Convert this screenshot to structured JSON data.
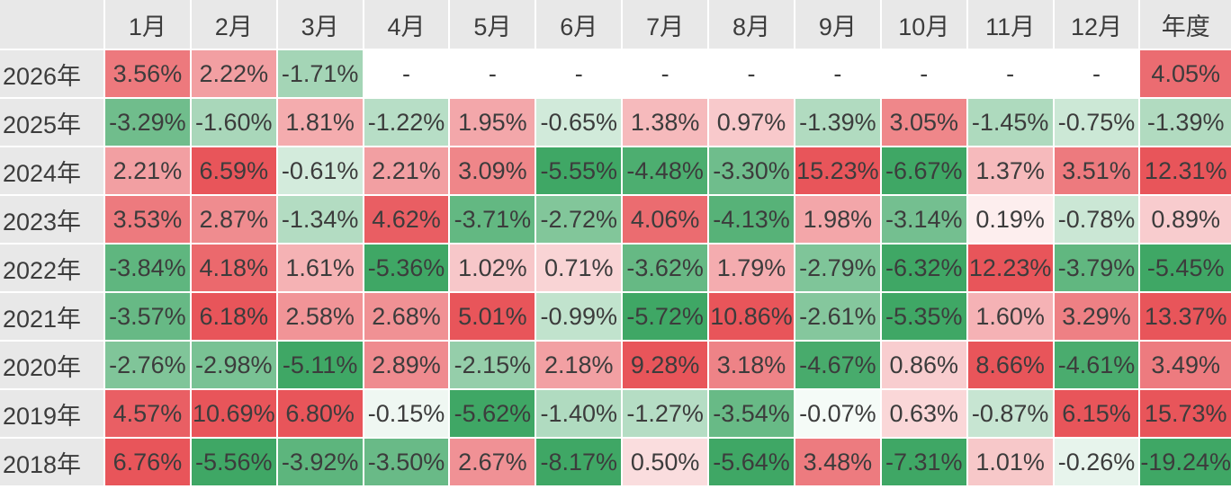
{
  "colors": {
    "positive_max": "#e8555a",
    "negative_max": "#3fa765",
    "zero_or_missing_bg": "#ffffff",
    "header_bg": "#e8e8e8",
    "text": "#3c3c3c",
    "grid_gap": "#ffffff",
    "scale_cap": 5
  },
  "table": {
    "corner": "",
    "columns": [
      "1月",
      "2月",
      "3月",
      "4月",
      "5月",
      "6月",
      "7月",
      "8月",
      "9月",
      "10月",
      "11月",
      "12月",
      "年度"
    ],
    "rows": [
      {
        "year": "2026年",
        "cells": [
          "3.56%",
          "2.22%",
          "-1.71%",
          "-",
          "-",
          "-",
          "-",
          "-",
          "-",
          "-",
          "-",
          "-",
          "4.05%"
        ]
      },
      {
        "year": "2025年",
        "cells": [
          "-3.29%",
          "-1.60%",
          "1.81%",
          "-1.22%",
          "1.95%",
          "-0.65%",
          "1.38%",
          "0.97%",
          "-1.39%",
          "3.05%",
          "-1.45%",
          "-0.75%",
          "-1.39%"
        ]
      },
      {
        "year": "2024年",
        "cells": [
          "2.21%",
          "6.59%",
          "-0.61%",
          "2.21%",
          "3.09%",
          "-5.55%",
          "-4.48%",
          "-3.30%",
          "15.23%",
          "-6.67%",
          "1.37%",
          "3.51%",
          "12.31%"
        ]
      },
      {
        "year": "2023年",
        "cells": [
          "3.53%",
          "2.87%",
          "-1.34%",
          "4.62%",
          "-3.71%",
          "-2.72%",
          "4.06%",
          "-4.13%",
          "1.98%",
          "-3.14%",
          "0.19%",
          "-0.78%",
          "0.89%"
        ]
      },
      {
        "year": "2022年",
        "cells": [
          "-3.84%",
          "4.18%",
          "1.61%",
          "-5.36%",
          "1.02%",
          "0.71%",
          "-3.62%",
          "1.79%",
          "-2.79%",
          "-6.32%",
          "12.23%",
          "-3.79%",
          "-5.45%"
        ]
      },
      {
        "year": "2021年",
        "cells": [
          "-3.57%",
          "6.18%",
          "2.58%",
          "2.68%",
          "5.01%",
          "-0.99%",
          "-5.72%",
          "10.86%",
          "-2.61%",
          "-5.35%",
          "1.60%",
          "3.29%",
          "13.37%"
        ]
      },
      {
        "year": "2020年",
        "cells": [
          "-2.76%",
          "-2.98%",
          "-5.11%",
          "2.89%",
          "-2.15%",
          "2.18%",
          "9.28%",
          "3.18%",
          "-4.67%",
          "0.86%",
          "8.66%",
          "-4.61%",
          "3.49%"
        ]
      },
      {
        "year": "2019年",
        "cells": [
          "4.57%",
          "10.69%",
          "6.80%",
          "-0.15%",
          "-5.62%",
          "-1.40%",
          "-1.27%",
          "-3.54%",
          "-0.07%",
          "0.63%",
          "-0.87%",
          "6.15%",
          "15.73%"
        ]
      },
      {
        "year": "2018年",
        "cells": [
          "6.76%",
          "-5.56%",
          "-3.92%",
          "-3.50%",
          "2.67%",
          "-8.17%",
          "0.50%",
          "-5.64%",
          "3.48%",
          "-7.31%",
          "1.01%",
          "-0.26%",
          "-19.24%"
        ]
      }
    ]
  },
  "chart_data": {
    "type": "heatmap",
    "title": "",
    "x_labels": [
      "1月",
      "2月",
      "3月",
      "4月",
      "5月",
      "6月",
      "7月",
      "8月",
      "9月",
      "10月",
      "11月",
      "12月",
      "年度"
    ],
    "y_labels": [
      "2026年",
      "2025年",
      "2024年",
      "2023年",
      "2022年",
      "2021年",
      "2020年",
      "2019年",
      "2018年"
    ],
    "unit": "%",
    "missing_display": "-",
    "values": [
      [
        3.56,
        2.22,
        -1.71,
        null,
        null,
        null,
        null,
        null,
        null,
        null,
        null,
        null,
        4.05
      ],
      [
        -3.29,
        -1.6,
        1.81,
        -1.22,
        1.95,
        -0.65,
        1.38,
        0.97,
        -1.39,
        3.05,
        -1.45,
        -0.75,
        -1.39
      ],
      [
        2.21,
        6.59,
        -0.61,
        2.21,
        3.09,
        -5.55,
        -4.48,
        -3.3,
        15.23,
        -6.67,
        1.37,
        3.51,
        12.31
      ],
      [
        3.53,
        2.87,
        -1.34,
        4.62,
        -3.71,
        -2.72,
        4.06,
        -4.13,
        1.98,
        -3.14,
        0.19,
        -0.78,
        0.89
      ],
      [
        -3.84,
        4.18,
        1.61,
        -5.36,
        1.02,
        0.71,
        -3.62,
        1.79,
        -2.79,
        -6.32,
        12.23,
        -3.79,
        -5.45
      ],
      [
        -3.57,
        6.18,
        2.58,
        2.68,
        5.01,
        -0.99,
        -5.72,
        10.86,
        -2.61,
        -5.35,
        1.6,
        3.29,
        13.37
      ],
      [
        -2.76,
        -2.98,
        -5.11,
        2.89,
        -2.15,
        2.18,
        9.28,
        3.18,
        -4.67,
        0.86,
        8.66,
        -4.61,
        3.49
      ],
      [
        4.57,
        10.69,
        6.8,
        -0.15,
        -5.62,
        -1.4,
        -1.27,
        -3.54,
        -0.07,
        0.63,
        -0.87,
        6.15,
        15.73
      ],
      [
        6.76,
        -5.56,
        -3.92,
        -3.5,
        2.67,
        -8.17,
        0.5,
        -5.64,
        3.48,
        -7.31,
        1.01,
        -0.26,
        -19.24
      ]
    ],
    "color_scale": {
      "zero_color": "#ffffff",
      "positive_max_color": "#e8555a",
      "negative_max_color": "#3fa765",
      "cap_abs_percent": 5
    },
    "legend_position": "none",
    "grid": "white 2px gaps between cells"
  }
}
